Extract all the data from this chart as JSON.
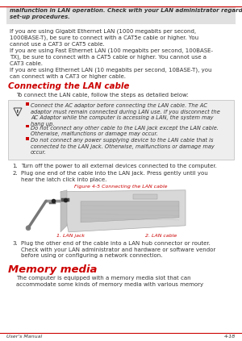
{
  "figsize": [
    3.0,
    4.23
  ],
  "dpi": 100,
  "bg_color": "#ffffff",
  "top_gray_bg": "#e0e0e0",
  "top_italic_text": "malfunction in LAN operation. Check with your LAN administrator regarding\nset-up procedures.",
  "para1": "If you are using Gigabit Ethernet LAN (1000 megabits per second,\n1000BASE-T), be sure to connect with a CAT5e cable or higher. You\ncannot use a CAT3 or CAT5 cable.",
  "para2": "If you are using Fast Ethernet LAN (100 megabits per second, 100BASE-\nTX), be sure to connect with a CAT5 cable or higher. You cannot use a\nCAT3 cable.",
  "para3": "If you are using Ethernet LAN (10 megabits per second, 10BASE-T), you\ncan connect with a CAT3 or higher cable.",
  "section_title": "Connecting the LAN cable",
  "section_title_color": "#cc0000",
  "intro_text": "To connect the LAN cable, follow the steps as detailed below:",
  "warning_bg": "#eeeeee",
  "warning_bullet1": "Connect the AC adaptor before connecting the LAN cable. The AC\nadaptor must remain connected during LAN use. If you disconnect the\nAC Adaptor while the computer is accessing a LAN, the system may\nhang up.",
  "warning_bullet2": "Do not connect any other cable to the LAN jack except the LAN cable.\nOtherwise, malfunctions or damage may occur.",
  "warning_bullet3": "Do not connect any power supplying device to the LAN cable that is\nconnected to the LAN jack. Otherwise, malfunctions or damage may\noccur.",
  "step1": "Turn off the power to all external devices connected to the computer.",
  "step2": "Plug one end of the cable into the LAN jack. Press gently until you\nhear the latch click into place.",
  "figure_caption": "Figure 4-5 Connecting the LAN cable",
  "figure_caption_color": "#cc0000",
  "label1": "1. LAN jack",
  "label1_color": "#cc0000",
  "label2": "2. LAN cable",
  "label2_color": "#cc0000",
  "step3": "Plug the other end of the cable into a LAN hub connector or router.\nCheck with your LAN administrator and hardware or software vendor\nbefore using or configuring a network connection.",
  "section2_title": "Memory media",
  "section2_title_color": "#cc0000",
  "section2_para": "The computer is equipped with a memory media slot that can\naccommodate some kinds of memory media with various memory",
  "footer_left": "User's Manual",
  "footer_right": "4-18",
  "footer_line_color": "#cc0000",
  "text_color": "#333333",
  "fs_body": 5.0,
  "fs_section": 7.5,
  "fs_section2": 9.5,
  "fs_footer": 4.5,
  "fs_bullet": 4.8,
  "fs_caption": 4.5
}
